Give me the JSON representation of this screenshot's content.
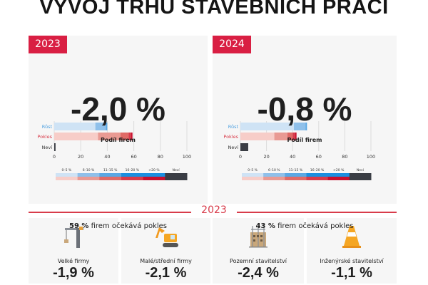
{
  "title": "VÝVOJ TRHU STAVEBNÍCH PRACÍ",
  "chart_data": [
    {
      "type": "bar",
      "orientation": "horizontal-stacked",
      "year": "2023",
      "headline": "-2,0 %",
      "title": "Podíl firem",
      "categories": [
        "Růst",
        "Pokles",
        "Neví"
      ],
      "xlim": [
        0,
        100
      ],
      "xticks": [
        "0",
        "20",
        "40",
        "60",
        "80",
        "100"
      ],
      "grid": true,
      "series": [
        {
          "name": "0–5 %",
          "values": [
            31,
            33,
            0
          ]
        },
        {
          "name": "6–10 %",
          "values": [
            8,
            17,
            0
          ]
        },
        {
          "name": "11–15 %",
          "values": [
            1,
            6,
            0
          ]
        },
        {
          "name": "16–20 %",
          "values": [
            0,
            2,
            0
          ]
        },
        {
          "name": ">20 %",
          "values": [
            0,
            1,
            0
          ]
        },
        {
          "name": "Neví",
          "values": [
            0,
            0,
            1
          ]
        }
      ],
      "summary_value": "59 %",
      "summary_text": "firem očekává pokles"
    },
    {
      "type": "bar",
      "orientation": "horizontal-stacked",
      "year": "2024",
      "headline": "-0,8 %",
      "title": "Podíl firem",
      "categories": [
        "Růst",
        "Pokles",
        "Neví"
      ],
      "xlim": [
        0,
        100
      ],
      "xticks": [
        "0",
        "20",
        "40",
        "60",
        "80",
        "100"
      ],
      "grid": true,
      "series": [
        {
          "name": "0–5 %",
          "values": [
            41,
            26,
            0
          ]
        },
        {
          "name": "6–10 %",
          "values": [
            9,
            10,
            0
          ]
        },
        {
          "name": "11–15 %",
          "values": [
            1,
            4,
            0
          ]
        },
        {
          "name": "16–20 %",
          "values": [
            0,
            2,
            0
          ]
        },
        {
          "name": ">20 %",
          "values": [
            0,
            1,
            0
          ]
        },
        {
          "name": "Neví",
          "values": [
            0,
            0,
            6
          ]
        }
      ],
      "summary_value": "43 %",
      "summary_text": "firem očekává pokles"
    }
  ],
  "colors": {
    "accent": "#d91f43",
    "blue": [
      "#cfe3f5",
      "#8fc0ea",
      "#5aa8e4",
      "#1a8fe0",
      "#1a8fe0"
    ],
    "red": [
      "#f7cdc8",
      "#e99a93",
      "#e06a66",
      "#d83b4a",
      "#c8102e"
    ],
    "nevi": "#3a3d44",
    "category_label": [
      "#4a9fe0",
      "#d83b4a",
      "#333333"
    ]
  },
  "section": {
    "year": "2023",
    "cards": [
      {
        "label": "Velké firmy",
        "value": "-1,9 %",
        "icon": "crane-icon"
      },
      {
        "label": "Malé/střední firmy",
        "value": "-2,1 %",
        "icon": "excavator-icon"
      },
      {
        "label": "Pozemní stavitelství",
        "value": "-2,4 %",
        "icon": "building-scaffold-icon"
      },
      {
        "label": "Inženýrské stavitelství",
        "value": "-1,1 %",
        "icon": "traffic-cone-icon"
      }
    ]
  }
}
